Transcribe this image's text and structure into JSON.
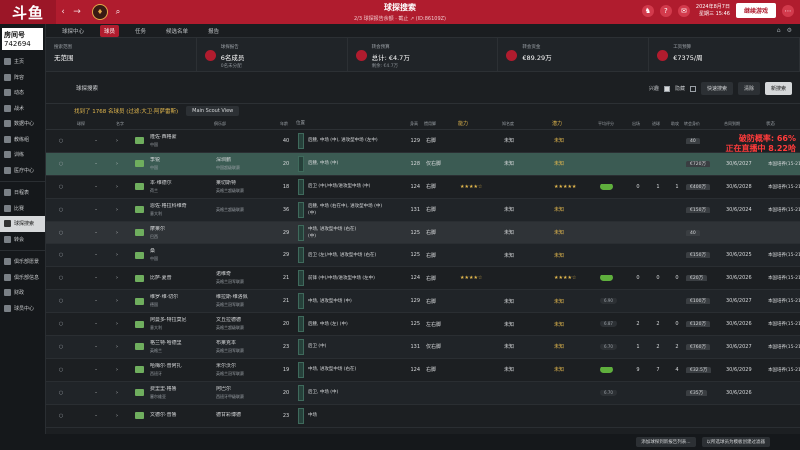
{
  "topbar": {
    "logo": "斗鱼",
    "back": "‹",
    "forward": "→",
    "crest": "♦",
    "search": "⌕",
    "title": "球探搜索",
    "subtitle": "2/3 球探报告余额 · 截止 ↗ (ID:86109Z)",
    "icons": [
      "♞",
      "?",
      "✉",
      "⋯"
    ],
    "date_line1": "2024年8月7日",
    "date_line2": "星期三 15:46",
    "continue_label": "继续游戏"
  },
  "sidebar": {
    "streamer_label": "房间号",
    "streamer_id": "742694",
    "items": [
      {
        "label": "主页",
        "active": false
      },
      {
        "label": "阵容",
        "active": false
      },
      {
        "label": "动态",
        "active": false
      },
      {
        "label": "战术",
        "active": false
      },
      {
        "label": "数据中心",
        "active": false
      },
      {
        "label": "教练组",
        "active": false
      },
      {
        "label": "训练",
        "active": false
      },
      {
        "label": "医疗中心",
        "active": false
      },
      {
        "label": "日程表",
        "active": false
      },
      {
        "label": "比赛",
        "active": false
      },
      {
        "label": "球探搜索",
        "active": true
      },
      {
        "label": "转会",
        "active": false
      },
      {
        "label": "俱乐部愿景",
        "active": false
      },
      {
        "label": "俱乐部信息",
        "active": false
      },
      {
        "label": "财政",
        "active": false
      },
      {
        "label": "球员中心",
        "active": false
      }
    ]
  },
  "tabs": [
    "球探中心",
    "球员",
    "任务",
    "候选名单",
    "报告"
  ],
  "tab_active": 1,
  "tab_icons": [
    "⌂",
    "⚙"
  ],
  "stats": [
    {
      "label": "搜索范围",
      "value": "无范围",
      "sub": ""
    },
    {
      "label": "球探报告",
      "value": "6名成员",
      "sub": "0名未分配"
    },
    {
      "label": "转会预算",
      "value": "总计: €4.7万",
      "sub": "剩余: €4.7万"
    },
    {
      "label": "转会资金",
      "value": "€89.29万",
      "sub": ""
    },
    {
      "label": "工资预算",
      "value": "€7375/周",
      "sub": ""
    }
  ],
  "filterbar": {
    "title": "球探搜索",
    "interested_label": "兴趣",
    "hidden_label": "隐藏",
    "quick_search": "快速搜索",
    "clear_label": "清除",
    "new_search": "新搜索"
  },
  "results": {
    "text": "找到了 1768 名球员 (过滤:大卫·阿萨雷斯)",
    "view_label": "Main Scout View"
  },
  "columns": [
    "球探",
    "名字",
    "俱乐部",
    "年龄",
    "位置",
    "身高",
    "惯用脚",
    "能力",
    "知名度",
    "潜力",
    "平均评分",
    "出场",
    "进球",
    "助攻",
    "转会身价",
    "合同到期",
    "状态"
  ],
  "rows": [
    {
      "name": "隆佐·西格蒙",
      "nat": "中国",
      "club": "",
      "league": "",
      "age": "40",
      "pos1": "后腰, 中场 (中), 进攻型中场 (左中)",
      "pos2": "",
      "hgt": "129",
      "foot": "右脚",
      "stars1": "",
      "know": "未知",
      "stars2": "未知",
      "rating": "",
      "n1": "",
      "n2": "",
      "n3": "",
      "val": "40",
      "contract": "",
      "status": "",
      "style": ""
    },
    {
      "name": "李锐",
      "nat": "中国",
      "club": "深圳鹏",
      "league": "中国超级联赛",
      "age": "20",
      "pos1": "后腰, 中场 (中)",
      "pos2": "",
      "hgt": "128",
      "foot": "仅右脚",
      "stars1": "",
      "know": "未知",
      "stars2": "未知",
      "rating": "",
      "n1": "",
      "n2": "",
      "n3": "",
      "val": "€720万",
      "contract": "30/6/2027",
      "status": "本国培养(15-21)",
      "style": "highlight"
    },
    {
      "name": "本·维德尔",
      "nat": "荷兰",
      "club": "莱切斯特",
      "league": "英格兰超级联赛",
      "age": "18",
      "pos1": "后卫 (中)/中场/进攻型中场 (中)",
      "pos2": "",
      "hgt": "124",
      "foot": "右脚",
      "stars1": "★★★★☆",
      "know": "",
      "stars2": "★★★★★",
      "rating": "green",
      "n1": "0",
      "n2": "1",
      "n3": "1",
      "val": "€400万",
      "contract": "30/6/2028",
      "status": "本国培养(15-21)",
      "style": ""
    },
    {
      "name": "恩佐·格拉科维奇",
      "nat": "意大利",
      "club": "",
      "league": "英格兰超级联赛",
      "age": "36",
      "pos1": "后腰, 中场 (右在中), 进攻型中场 (中)",
      "pos2": "(中)",
      "hgt": "131",
      "foot": "右脚",
      "stars1": "",
      "know": "未知",
      "stars2": "未知",
      "rating": "",
      "n1": "",
      "n2": "",
      "n3": "",
      "val": "€150万",
      "contract": "30/6/2024",
      "status": "本国培养(15-21)",
      "style": ""
    },
    {
      "name": "摩莱尔",
      "nat": "巴西",
      "club": "",
      "league": "",
      "age": "29",
      "pos1": "中场, 进攻型中场 (右在)",
      "pos2": "(中)",
      "hgt": "125",
      "foot": "右脚",
      "stars1": "",
      "know": "未知",
      "stars2": "未知",
      "rating": "",
      "n1": "",
      "n2": "",
      "n3": "",
      "val": "40",
      "contract": "",
      "status": "",
      "style": "sel"
    },
    {
      "name": "桑",
      "nat": "中国",
      "club": "",
      "league": "",
      "age": "29",
      "pos1": "后卫 (左)/中场, 进攻型中场 (右在)",
      "pos2": "",
      "hgt": "125",
      "foot": "右脚",
      "stars1": "",
      "know": "未知",
      "stars2": "未知",
      "rating": "",
      "n1": "",
      "n2": "",
      "n3": "",
      "val": "€150万",
      "contract": "30/6/2025",
      "status": "本国培养(15-21)",
      "style": ""
    },
    {
      "name": "比萨·夏普",
      "nat": "",
      "club": "诺维奇",
      "league": "英格兰冠军联赛",
      "age": "21",
      "pos1": "前锋 (中)/中场/进攻型中场 (左中)",
      "pos2": "",
      "hgt": "124",
      "foot": "右脚",
      "stars1": "★★★★☆",
      "know": "",
      "stars2": "★★★★☆",
      "rating": "green",
      "n1": "0",
      "n2": "0",
      "n3": "0",
      "val": "€20万",
      "contract": "30/6/2026",
      "status": "本国培养(15-21)",
      "style": ""
    },
    {
      "name": "维罗·维·切尔",
      "nat": "德国",
      "club": "维拉斯·维洛佩",
      "league": "英格兰冠军联赛",
      "age": "21",
      "pos1": "中场, 进攻型中场 (中)",
      "pos2": "",
      "hgt": "129",
      "foot": "右脚",
      "stars1": "",
      "know": "未知",
      "stars2": "未知",
      "rating": "6.90",
      "n1": "",
      "n2": "",
      "n3": "",
      "val": "€100万",
      "contract": "30/6/2027",
      "status": "本国培养(15-21)",
      "style": ""
    },
    {
      "name": "阿曼多·特拉莫尼",
      "nat": "意大利",
      "club": "文丘拉德德",
      "league": "英格兰超级联赛",
      "age": "20",
      "pos1": "后腰, 中场 (左) (中)",
      "pos2": "",
      "hgt": "125",
      "foot": "左右脚",
      "stars1": "",
      "know": "未知",
      "stars2": "未知",
      "rating": "6.87",
      "n1": "2",
      "n2": "2",
      "n3": "0",
      "val": "€120万",
      "contract": "30/6/2026",
      "status": "本国培养(15-21)",
      "style": ""
    },
    {
      "name": "格兰特·哈德里",
      "nat": "英格兰",
      "club": "布莱克本",
      "league": "英格兰冠军联赛",
      "age": "23",
      "pos1": "后卫 (中)",
      "pos2": "",
      "hgt": "131",
      "foot": "仅右脚",
      "stars1": "",
      "know": "未知",
      "stars2": "未知",
      "rating": "6.70",
      "n1": "1",
      "n2": "2",
      "n3": "2",
      "val": "€760万",
      "contract": "30/6/2027",
      "status": "本国培养(15-21)",
      "style": ""
    },
    {
      "name": "哈梅尔·普阿扎",
      "nat": "西班牙",
      "club": "米尔沃尔",
      "league": "英格兰冠军联赛",
      "age": "19",
      "pos1": "中场, 进攻型中场 (右在)",
      "pos2": "",
      "hgt": "124",
      "foot": "右脚",
      "stars1": "",
      "know": "未知",
      "stars2": "未知",
      "rating": "green",
      "n1": "9",
      "n2": "7",
      "n3": "4",
      "val": "€32.5万",
      "contract": "30/6/2029",
      "status": "本国培养(15-21)",
      "style": ""
    },
    {
      "name": "费里里·格鲁",
      "nat": "塞尔维亚",
      "club": "阿巴尔",
      "league": "西班牙甲级联赛",
      "age": "20",
      "pos1": "后卫, 中场 (中)",
      "pos2": "",
      "hgt": "",
      "foot": "",
      "stars1": "",
      "know": "",
      "stars2": "",
      "rating": "6.70",
      "n1": "",
      "n2": "",
      "n3": "",
      "val": "€35万",
      "contract": "30/6/2026",
      "status": "",
      "style": ""
    },
    {
      "name": "文德尔·普鲁",
      "nat": "",
      "club": "德甘彩博德",
      "league": "",
      "age": "23",
      "pos1": "中场",
      "pos2": "",
      "hgt": "",
      "foot": "",
      "stars1": "",
      "know": "",
      "stars2": "",
      "rating": "",
      "n1": "",
      "n2": "",
      "n3": "",
      "val": "",
      "contract": "",
      "status": "",
      "style": ""
    }
  ],
  "overlay": {
    "line1": "破防概率: 66%",
    "line2": "正在直播中 8.22哈"
  },
  "bottom": {
    "btn1": "添加球探到新报告列表...",
    "btn2": "以所选球员为模板创建过滤器"
  }
}
